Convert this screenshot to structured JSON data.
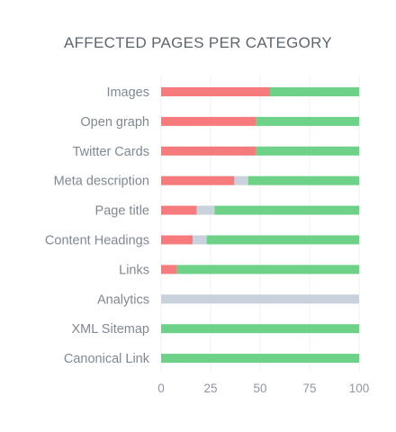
{
  "chart_data": {
    "type": "bar",
    "orientation": "horizontal",
    "stacked": true,
    "title": "AFFECTED PAGES PER CATEGORY",
    "xlabel": "",
    "ylabel": "",
    "xlim": [
      0,
      100
    ],
    "x_ticks": [
      0,
      25,
      50,
      75,
      100
    ],
    "grid": true,
    "legend": "none",
    "categories": [
      "Images",
      "Open graph",
      "Twitter Cards",
      "Meta description",
      "Page title",
      "Content Headings",
      "Links",
      "Analytics",
      "XML Sitemap",
      "Canonical Link"
    ],
    "series": [
      {
        "color": "#f77b7d",
        "values": [
          55,
          48,
          48,
          37,
          18,
          16,
          8,
          0,
          0,
          0
        ]
      },
      {
        "color": "#c9d1dc",
        "values": [
          0,
          0,
          0,
          7,
          9,
          7,
          0,
          100,
          0,
          0
        ]
      },
      {
        "color": "#6dd287",
        "values": [
          45,
          52,
          52,
          56,
          73,
          77,
          92,
          0,
          100,
          100
        ]
      }
    ]
  }
}
